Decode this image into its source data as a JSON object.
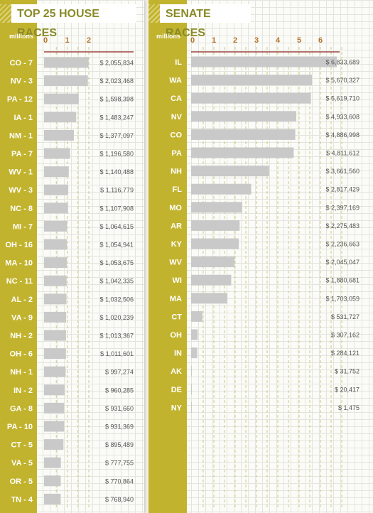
{
  "house": {
    "title": "TOP 25 HOUSE RACES",
    "unit": "millions"
  },
  "senate": {
    "title": "SENATE RACES",
    "unit": "millions"
  },
  "colors": {
    "band": "#c2b32e",
    "bar": "#c9c9c9",
    "tick": "#b5732a",
    "axis_line": "#8b2020",
    "title_text": "#8a8a27",
    "value_text": "#555555"
  },
  "chart_data": [
    {
      "type": "bar",
      "orientation": "horizontal",
      "title": "TOP 25 HOUSE RACES",
      "xlabel": "millions",
      "xlim": [
        0,
        2.4
      ],
      "ticks": [
        0,
        1,
        2
      ],
      "grid": true,
      "categories": [
        "CO - 7",
        "NV - 3",
        "PA - 12",
        "IA - 1",
        "NM - 1",
        "PA - 7",
        "WV - 1",
        "WV - 3",
        "NC - 8",
        "MI - 7",
        "OH - 16",
        "MA - 10",
        "NC - 11",
        "AL - 2",
        "VA - 9",
        "NH - 2",
        "OH - 6",
        "NH - 1",
        "IN - 2",
        "GA - 8",
        "PA - 10",
        "CT - 5",
        "VA - 5",
        "OR - 5",
        "TN - 4"
      ],
      "values": [
        2055834,
        2023468,
        1598398,
        1483247,
        1377097,
        1196580,
        1140488,
        1116779,
        1107908,
        1064615,
        1054941,
        1053675,
        1042335,
        1032506,
        1020239,
        1013367,
        1011601,
        997274,
        960285,
        931660,
        931369,
        895489,
        777755,
        770864,
        768940
      ],
      "value_labels": [
        "$ 2,055,834",
        "$ 2,023,468",
        "$ 1,598,398",
        "$ 1,483,247",
        "$ 1,377,097",
        "$ 1,196,580",
        "$ 1,140,488",
        "$ 1,116,779",
        "$ 1,107,908",
        "$ 1,064,615",
        "$ 1,054,941",
        "$ 1,053,675",
        "$ 1,042,335",
        "$ 1,032,506",
        "$ 1,020,239",
        "$ 1,013,367",
        "$ 1,011,601",
        "$ 997,274",
        "$ 960,285",
        "$ 931,660",
        "$ 931,369",
        "$ 895,489",
        "$ 777,755",
        "$ 770,864",
        "$ 768,940"
      ]
    },
    {
      "type": "bar",
      "orientation": "horizontal",
      "title": "SENATE RACES",
      "xlabel": "millions",
      "xlim": [
        0,
        7
      ],
      "ticks": [
        0,
        1,
        2,
        3,
        4,
        5,
        6
      ],
      "grid": true,
      "categories": [
        "IL",
        "WA",
        "CA",
        "NV",
        "CO",
        "PA",
        "NH",
        "FL",
        "MO",
        "AR",
        "KY",
        "WV",
        "WI",
        "MA",
        "CT",
        "OH",
        "IN",
        "AK",
        "DE",
        "NY"
      ],
      "values": [
        6833689,
        5670327,
        5619710,
        4933608,
        4886998,
        4811612,
        3661560,
        2817429,
        2397169,
        2275483,
        2236663,
        2045047,
        1880681,
        1703059,
        531727,
        307162,
        284121,
        31752,
        20417,
        1475
      ],
      "value_labels": [
        "$ 6,833,689",
        "$ 5,670,327",
        "$ 5,619,710",
        "$ 4,933,608",
        "$ 4,886,998",
        "$ 4,811,612",
        "$ 3,661,560",
        "$ 2,817,429",
        "$ 2,397,169",
        "$ 2,275,483",
        "$ 2,236,663",
        "$ 2,045,047",
        "$ 1,880,681",
        "$ 1,703,059",
        "$ 531,727",
        "$ 307,162",
        "$ 284,121",
        "$ 31,752",
        "$ 20,417",
        "$ 1,475"
      ]
    }
  ]
}
